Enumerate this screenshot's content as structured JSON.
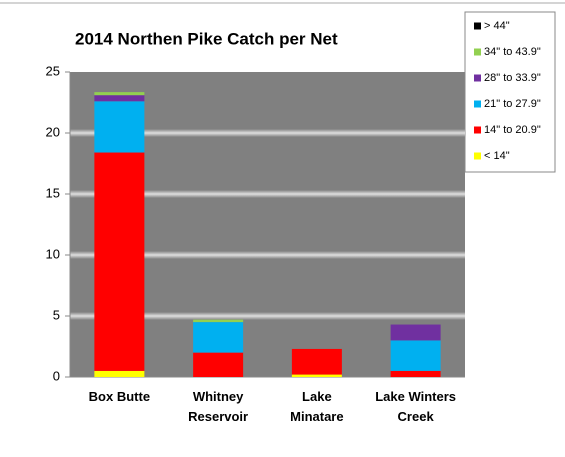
{
  "chart_data": {
    "type": "stacked_bar",
    "title": "2014 Northen Pike Catch per Net",
    "categories": [
      "Box Butte",
      "Whitney\nReservoir",
      "Lake\nMinatare",
      "Lake Winters\nCreek"
    ],
    "series": [
      {
        "name": "< 14\"",
        "color": "#ffff00",
        "values": [
          0.5,
          0,
          0.2,
          0
        ]
      },
      {
        "name": "14\" to 20.9\"",
        "color": "#ff0000",
        "values": [
          17.9,
          2.0,
          2.1,
          0.5
        ]
      },
      {
        "name": "21\" to 27.9\"",
        "color": "#00b0f0",
        "values": [
          4.2,
          2.5,
          0,
          2.5
        ]
      },
      {
        "name": "28\" to 33.9\"",
        "color": "#7030a0",
        "values": [
          0.5,
          0,
          0,
          1.3
        ]
      },
      {
        "name": "34\" to 43.9\"",
        "color": "#92d050",
        "values": [
          0.25,
          0.2,
          0,
          0
        ]
      },
      {
        "name": "> 44\"",
        "color": "#000000",
        "values": [
          0,
          0,
          0,
          0
        ]
      }
    ],
    "ylim": [
      0,
      25
    ],
    "yticks": [
      0,
      5,
      10,
      15,
      20,
      25
    ],
    "grid": true,
    "legend": "top-right"
  }
}
